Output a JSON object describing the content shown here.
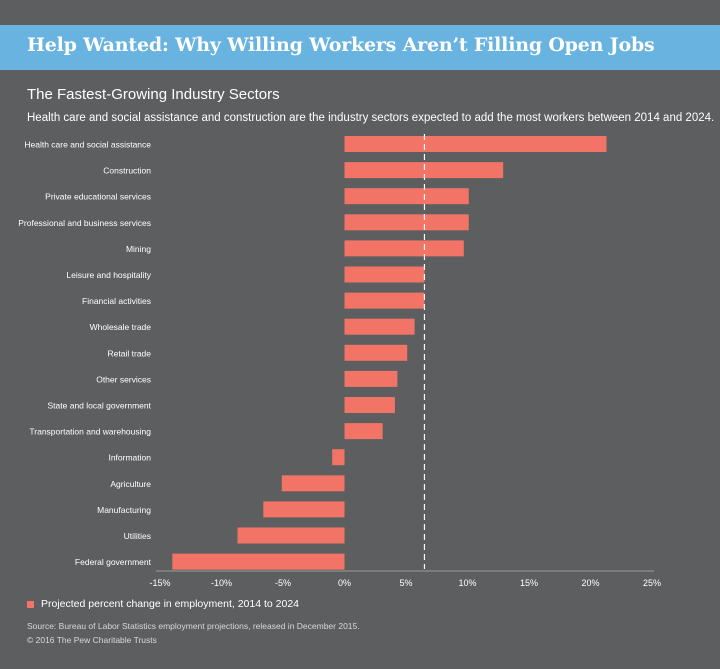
{
  "header": {
    "title": "Help Wanted: Why Willing Workers Aren’t Filling Open Jobs"
  },
  "chart_data": {
    "type": "bar",
    "orientation": "horizontal",
    "title": "The Fastest-Growing Industry Sectors",
    "subtitle": "Health care and social assistance and construction are the industry sectors expected to add the most workers between 2014 and 2024.",
    "categories": [
      "Health care and social assistance",
      "Construction",
      "Private educational services",
      "Professional and business services",
      "Mining",
      "Leisure and hospitality",
      "Financial activities",
      "Wholesale trade",
      "Retail trade",
      "Other services",
      "State and local government",
      "Transportation and warehousing",
      "Information",
      "Agriculture",
      "Manufacturing",
      "Utilities",
      "Federal government"
    ],
    "series": [
      {
        "name": "Projected percent change in employment, 2014 to 2024",
        "values": [
          21.3,
          12.9,
          10.1,
          10.1,
          9.7,
          6.5,
          6.5,
          5.7,
          5.1,
          4.3,
          4.1,
          3.1,
          -1.0,
          -5.1,
          -6.6,
          -8.7,
          -14.0
        ]
      }
    ],
    "x_ticks": [
      "-15%",
      "-10%",
      "-5%",
      "0%",
      "5%",
      "10%",
      "15%",
      "20%",
      "25%"
    ],
    "xlim": [
      -15,
      25
    ],
    "reference_line": 6.5,
    "grid": false,
    "legend_position": "bottom-left"
  },
  "colors": {
    "background": "#5d5e5f",
    "banner": "#69b3e0",
    "bar": "#f27466",
    "axis": "#9a9a9a",
    "reference_line": "#ffffff"
  },
  "footer": {
    "source": "Source: Bureau of Labor Statistics employment projections, released in December 2015.",
    "copyright": "© 2016 The Pew Charitable Trusts"
  }
}
